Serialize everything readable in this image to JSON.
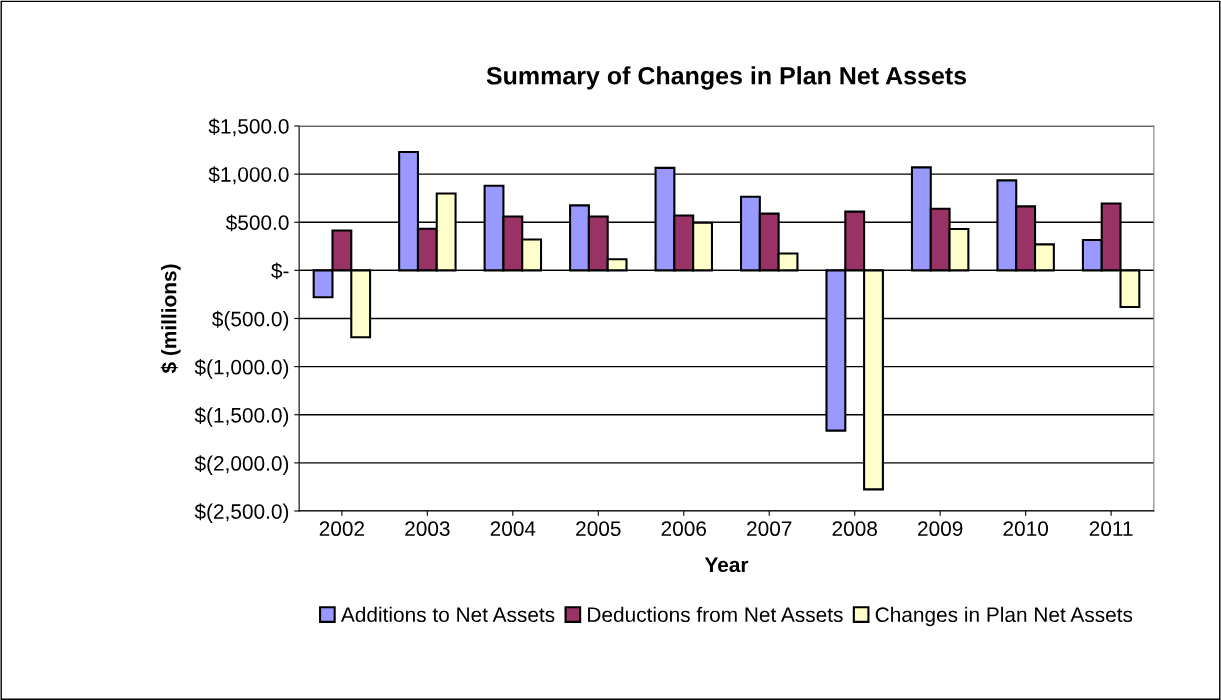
{
  "chart_data": {
    "type": "bar",
    "title": "Summary of Changes in Plan Net Assets",
    "xlabel": "Year",
    "ylabel": "$ (millions)",
    "categories": [
      "2002",
      "2003",
      "2004",
      "2005",
      "2006",
      "2007",
      "2008",
      "2009",
      "2010",
      "2011"
    ],
    "series": [
      {
        "name": "Additions to Net Assets",
        "color": "#9999ff",
        "values": [
          -280,
          1230,
          880,
          675,
          1065,
          765,
          -1665,
          1070,
          935,
          315
        ]
      },
      {
        "name": "Deductions from Net Assets",
        "color": "#993366",
        "values": [
          415,
          432,
          560,
          560,
          570,
          590,
          610,
          640,
          665,
          695
        ]
      },
      {
        "name": "Changes in Plan Net Assets",
        "color": "#ffffcc",
        "values": [
          -695,
          798,
          320,
          115,
          495,
          175,
          -2275,
          430,
          270,
          -380
        ]
      }
    ],
    "ylim": [
      -2500,
      1500
    ],
    "yticks": [
      {
        "value": -2500,
        "label": "$(2,500.0)"
      },
      {
        "value": -2000,
        "label": "$(2,000.0)"
      },
      {
        "value": -1500,
        "label": "$(1,500.0)"
      },
      {
        "value": -1000,
        "label": "$(1,000.0)"
      },
      {
        "value": -500,
        "label": "$(500.0)"
      },
      {
        "value": 0,
        "label": "$-"
      },
      {
        "value": 500,
        "label": "$500.0"
      },
      {
        "value": 1000,
        "label": "$1,000.0"
      },
      {
        "value": 1500,
        "label": "$1,500.0"
      }
    ],
    "grid": "y",
    "legend": "bottom"
  }
}
